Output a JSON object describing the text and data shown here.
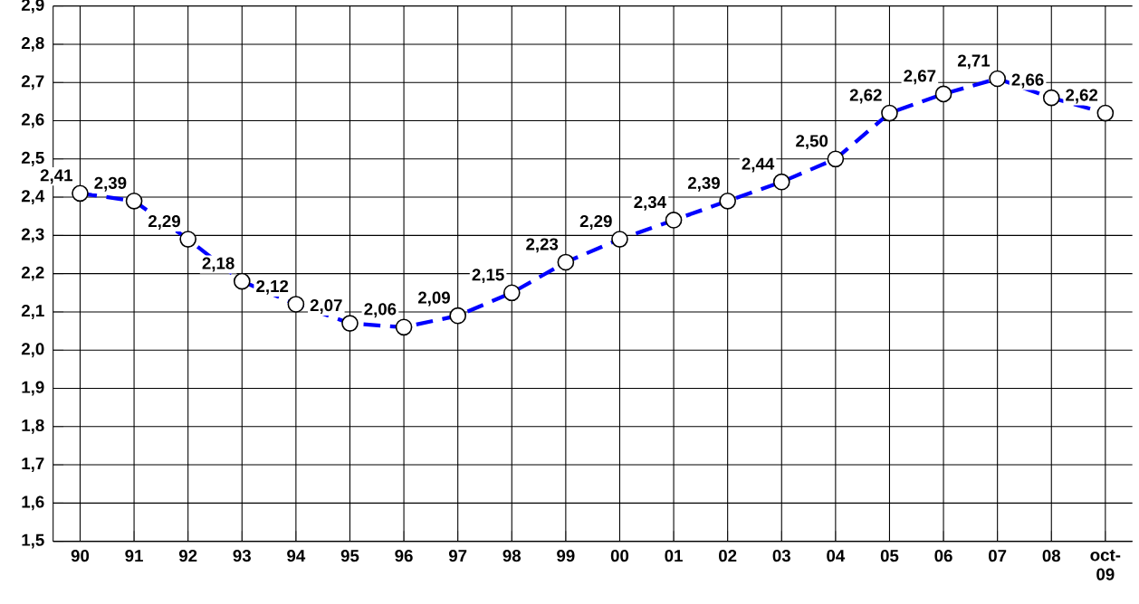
{
  "chart_data": {
    "type": "line",
    "categories": [
      "90",
      "91",
      "92",
      "93",
      "94",
      "95",
      "96",
      "97",
      "98",
      "99",
      "00",
      "01",
      "02",
      "03",
      "04",
      "05",
      "06",
      "07",
      "08",
      "oct-09"
    ],
    "series": [
      {
        "color": "#0000ff",
        "values": [
          2.41,
          2.39,
          2.29,
          2.18,
          2.12,
          2.07,
          2.06,
          2.09,
          2.15,
          2.23,
          2.29,
          2.34,
          2.39,
          2.44,
          2.5,
          2.62,
          2.67,
          2.71,
          2.66,
          2.62
        ],
        "value_labels": [
          "2,41",
          "2,39",
          "2,29",
          "2,18",
          "2,12",
          "2,07",
          "2,06",
          "2,09",
          "2,15",
          "2,23",
          "2,29",
          "2,34",
          "2,39",
          "2,44",
          "2,50",
          "2,62",
          "2,67",
          "2,71",
          "2,66",
          "2,62"
        ]
      }
    ],
    "ylim": [
      1.5,
      2.9
    ],
    "yticks": [
      {
        "value": 1.5,
        "label": "1,5"
      },
      {
        "value": 1.6,
        "label": "1,6"
      },
      {
        "value": 1.7,
        "label": "1,7"
      },
      {
        "value": 1.8,
        "label": "1,8"
      },
      {
        "value": 1.9,
        "label": "1,9"
      },
      {
        "value": 2.0,
        "label": "2,0"
      },
      {
        "value": 2.1,
        "label": "2,1"
      },
      {
        "value": 2.2,
        "label": "2,2"
      },
      {
        "value": 2.3,
        "label": "2,3"
      },
      {
        "value": 2.4,
        "label": "2,4"
      },
      {
        "value": 2.5,
        "label": "2,5"
      },
      {
        "value": 2.6,
        "label": "2,6"
      },
      {
        "value": 2.7,
        "label": "2,7"
      },
      {
        "value": 2.8,
        "label": "2,8"
      },
      {
        "value": 2.9,
        "label": "2,9"
      }
    ],
    "grid": true,
    "marker": "circle",
    "line_style": "dashed"
  }
}
